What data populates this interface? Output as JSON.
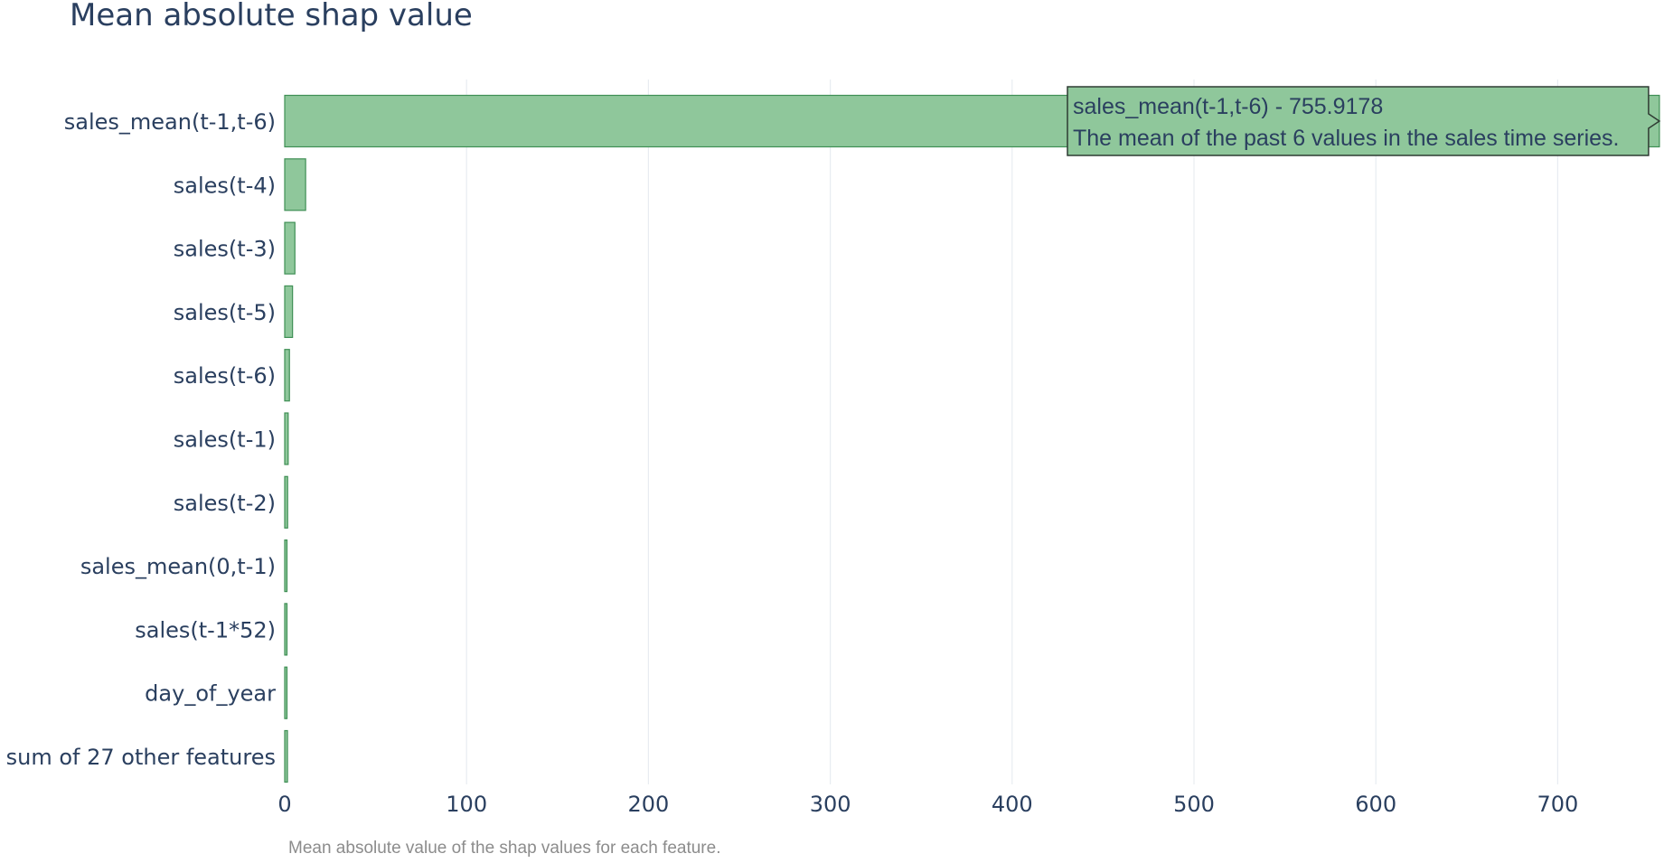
{
  "colors": {
    "bar_fill": "#8fc79b",
    "bar_stroke": "#3f8f55",
    "grid": "#e8ecf1",
    "text": "#2a3f5f",
    "caption": "#8c8c8c",
    "tooltip_fill": "#8fc79b",
    "tooltip_stroke": "#2f3b33"
  },
  "chart_data": {
    "type": "bar",
    "orientation": "horizontal",
    "title": "Mean absolute shap value",
    "xlabel": "Mean absolute value of the shap values for each feature.",
    "ylabel": "",
    "xlim": [
      0,
      755.9178
    ],
    "x_ticks": [
      0,
      100,
      200,
      300,
      400,
      500,
      600,
      700
    ],
    "grid": "vertical",
    "categories": [
      "sales_mean(t-1,t-6)",
      "sales(t-4)",
      "sales(t-3)",
      "sales(t-5)",
      "sales(t-6)",
      "sales(t-1)",
      "sales(t-2)",
      "sales_mean(0,t-1)",
      "sales(t-1*52)",
      "day_of_year",
      "sum of 27 other features"
    ],
    "values": [
      755.9178,
      11.5,
      5.6,
      4.3,
      2.6,
      1.9,
      1.6,
      1.1,
      1.0,
      0.9,
      1.5
    ],
    "hover": {
      "category": "sales_mean(t-1,t-6)",
      "line1": "sales_mean(t-1,t-6)  - 755.9178",
      "line2": "The mean of the past 6 values in the sales time series."
    }
  }
}
